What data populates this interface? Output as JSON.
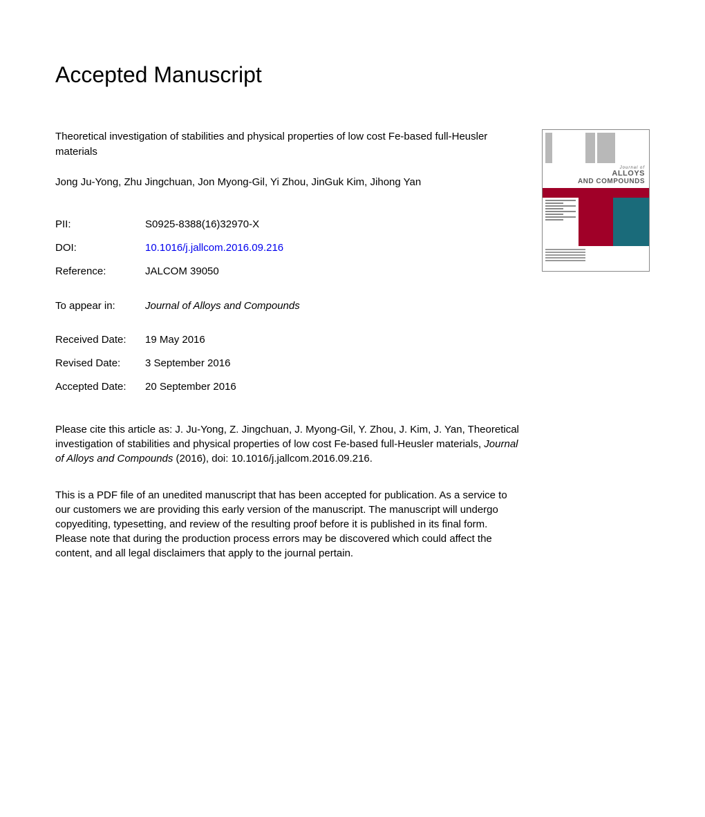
{
  "heading": "Accepted Manuscript",
  "paper": {
    "title": "Theoretical investigation of stabilities and physical properties of low cost Fe-based full-Heusler materials",
    "authors": "Jong Ju-Yong, Zhu Jingchuan, Jon Myong-Gil, Yi Zhou, JinGuk Kim, Jihong Yan"
  },
  "meta": {
    "pii_label": "PII:",
    "pii_value": "S0925-8388(16)32970-X",
    "doi_label": "DOI:",
    "doi_value": "10.1016/j.jallcom.2016.09.216",
    "ref_label": "Reference:",
    "ref_value": "JALCOM 39050",
    "appear_label": "To appear in:",
    "appear_value": "Journal of Alloys and Compounds",
    "received_label": "Received Date:",
    "received_value": "19 May 2016",
    "revised_label": "Revised Date:",
    "revised_value": "3 September 2016",
    "accepted_label": "Accepted Date:",
    "accepted_value": "20 September 2016"
  },
  "citation": {
    "prefix": "Please cite this article as: J. Ju-Yong, Z. Jingchuan, J. Myong-Gil, Y. Zhou, J. Kim, J. Yan, Theoretical investigation of stabilities and physical properties of low cost Fe-based full-Heusler materials, ",
    "journal": "Journal of Alloys and Compounds",
    "suffix": " (2016), doi: 10.1016/j.jallcom.2016.09.216."
  },
  "disclaimer": "This is a PDF file of an unedited manuscript that has been accepted for publication. As a service to our customers we are providing this early version of the manuscript. The manuscript will undergo copyediting, typesetting, and review of the resulting proof before it is published in its final form. Please note that during the production process errors may be discovered which could affect the content, and all legal disclaimers that apply to the journal pertain.",
  "cover": {
    "journal_of": "Journal of",
    "line1": "ALLOYS",
    "line2": "AND COMPOUNDS",
    "band_color": "#a00028",
    "teal_color": "#1a6b7a",
    "gray_color": "#b8b8b8"
  },
  "colors": {
    "text": "#000000",
    "link": "#0000ee",
    "background": "#ffffff"
  },
  "fonts": {
    "body_size_pt": 11,
    "heading_size_pt": 24
  }
}
